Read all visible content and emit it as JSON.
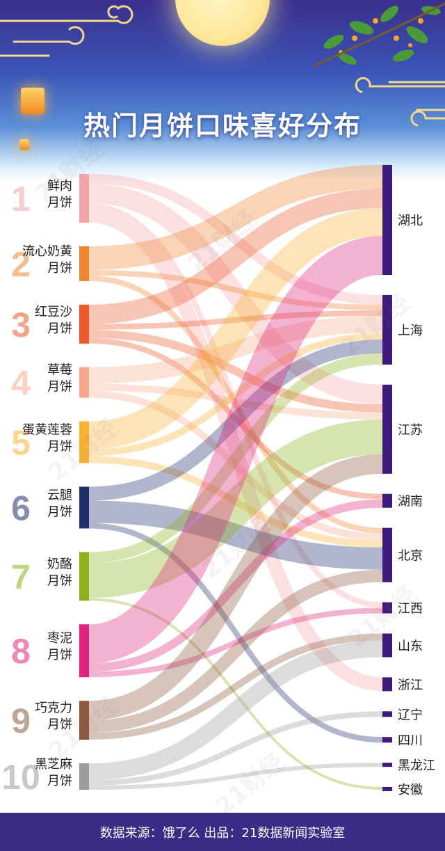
{
  "title": "热门月饼口味喜好分布",
  "footer": "数据来源：饿了么  出品：21数据新闻实验室",
  "watermark": "21财经",
  "colors": {
    "header_top": "#3a2f8c",
    "footer": "#3b2a86",
    "bar_right": "#3d1b7a"
  },
  "chart_data": {
    "type": "sankey",
    "title": "热门月饼口味喜好分布",
    "sources": [
      {
        "rank": "1",
        "name": "鲜肉\n月饼",
        "color": "#f4a3a8"
      },
      {
        "rank": "2",
        "name": "流心奶黄\n月饼",
        "color": "#f08530"
      },
      {
        "rank": "3",
        "name": "红豆沙\n月饼",
        "color": "#ec5a2a"
      },
      {
        "rank": "4",
        "name": "草莓\n月饼",
        "color": "#f7a98c"
      },
      {
        "rank": "5",
        "name": "蛋黄莲蓉\n月饼",
        "color": "#f9b233"
      },
      {
        "rank": "6",
        "name": "云腿\n月饼",
        "color": "#1f2f6e"
      },
      {
        "rank": "7",
        "name": "奶酪\n月饼",
        "color": "#8db21e"
      },
      {
        "rank": "8",
        "name": "枣泥\n月饼",
        "color": "#e0237a"
      },
      {
        "rank": "9",
        "name": "巧克力\n月饼",
        "color": "#8b5a3c"
      },
      {
        "rank": "10",
        "name": "黑芝麻\n月饼",
        "color": "#9b9b9b"
      }
    ],
    "targets": [
      "湖北",
      "上海",
      "江苏",
      "湖南",
      "北京",
      "江西",
      "山东",
      "浙江",
      "辽宁",
      "四川",
      "黑龙江",
      "安徽"
    ],
    "flows": [
      {
        "source": 0,
        "target": 1,
        "value": 14
      },
      {
        "source": 0,
        "target": 2,
        "value": 28
      },
      {
        "source": 0,
        "target": 5,
        "value": 8
      },
      {
        "source": 0,
        "target": 7,
        "value": 20
      },
      {
        "source": 1,
        "target": 0,
        "value": 34
      },
      {
        "source": 1,
        "target": 1,
        "value": 8
      },
      {
        "source": 1,
        "target": 4,
        "value": 8
      },
      {
        "source": 2,
        "target": 0,
        "value": 28
      },
      {
        "source": 2,
        "target": 1,
        "value": 8
      },
      {
        "source": 2,
        "target": 2,
        "value": 12
      },
      {
        "source": 2,
        "target": 3,
        "value": 8
      },
      {
        "source": 3,
        "target": 1,
        "value": 24
      },
      {
        "source": 3,
        "target": 2,
        "value": 10
      },
      {
        "source": 3,
        "target": 4,
        "value": 10
      },
      {
        "source": 4,
        "target": 0,
        "value": 40
      },
      {
        "source": 4,
        "target": 1,
        "value": 10
      },
      {
        "source": 4,
        "target": 4,
        "value": 10
      },
      {
        "source": 5,
        "target": 1,
        "value": 20
      },
      {
        "source": 5,
        "target": 4,
        "value": 32
      },
      {
        "source": 5,
        "target": 9,
        "value": 8
      },
      {
        "source": 6,
        "target": 1,
        "value": 16
      },
      {
        "source": 6,
        "target": 2,
        "value": 50
      },
      {
        "source": 6,
        "target": 11,
        "value": 4
      },
      {
        "source": 7,
        "target": 0,
        "value": 56
      },
      {
        "source": 7,
        "target": 3,
        "value": 12
      },
      {
        "source": 7,
        "target": 5,
        "value": 8
      },
      {
        "source": 8,
        "target": 2,
        "value": 28
      },
      {
        "source": 8,
        "target": 4,
        "value": 18
      },
      {
        "source": 8,
        "target": 6,
        "value": 10
      },
      {
        "source": 9,
        "target": 6,
        "value": 24
      },
      {
        "source": 9,
        "target": 8,
        "value": 8
      },
      {
        "source": 9,
        "target": 10,
        "value": 6
      }
    ]
  }
}
